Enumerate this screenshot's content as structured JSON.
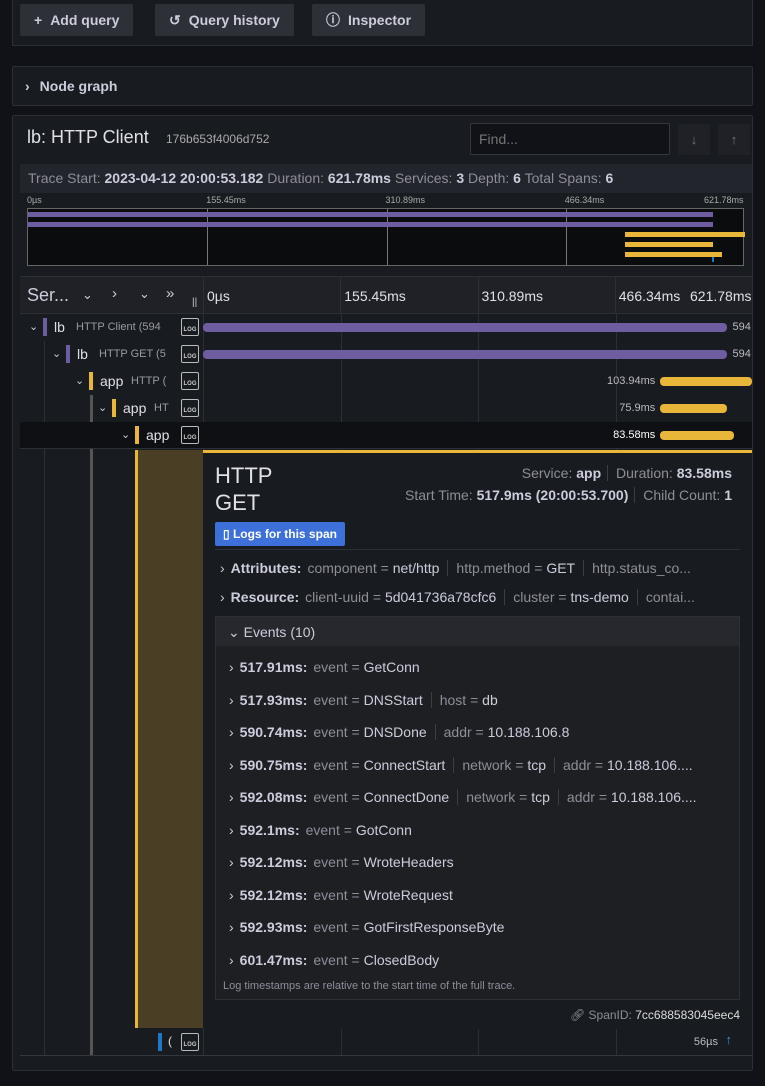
{
  "toolbar": {
    "add_query": "Add query",
    "query_history": "Query history",
    "inspector": "Inspector"
  },
  "node_graph": {
    "label": "Node graph"
  },
  "trace": {
    "title": "lb: HTTP Client",
    "trace_id": "176b653f4006d752",
    "find_placeholder": "Find...",
    "stats": {
      "trace_start_label": "Trace Start:",
      "trace_start": "2023-04-12 20:00:53.182",
      "duration_label": "Duration:",
      "duration": "621.78ms",
      "services_label": "Services:",
      "services": "3",
      "depth_label": "Depth:",
      "depth": "6",
      "total_spans_label": "Total Spans:",
      "total_spans": "6"
    },
    "ticks": [
      "0µs",
      "155.45ms",
      "310.89ms",
      "466.34ms",
      "621.78ms"
    ],
    "total_ms": 621.78,
    "header_service": "Ser...",
    "colors": {
      "lb": "#6e5da0",
      "app": "#e8b73a",
      "db": "#1f78c1"
    },
    "spans": [
      {
        "service": "lb",
        "operation": "HTTP Client (594",
        "depth": 0,
        "start_ms": 0,
        "duration_ms": 594,
        "label": "594",
        "color": "#6e5da0"
      },
      {
        "service": "lb",
        "operation": "HTTP GET (5",
        "depth": 1,
        "start_ms": 0,
        "duration_ms": 594,
        "label": "594",
        "color": "#6e5da0"
      },
      {
        "service": "app",
        "operation": "HTTP (",
        "depth": 2,
        "start_ms": 517.9,
        "duration_ms": 103.94,
        "label": "103.94ms",
        "color": "#e8b73a"
      },
      {
        "service": "app",
        "operation": "HT",
        "depth": 3,
        "start_ms": 517.9,
        "duration_ms": 75.9,
        "label": "75.9ms",
        "color": "#e8b73a"
      },
      {
        "service": "app",
        "operation": "",
        "depth": 4,
        "start_ms": 517.9,
        "duration_ms": 83.58,
        "label": "83.58ms",
        "color": "#e8b73a"
      }
    ],
    "last_span": {
      "service": "(",
      "label": "56µs",
      "color": "#1f78c1"
    }
  },
  "detail": {
    "title_line1": "HTTP",
    "title_line2": "GET",
    "service_label": "Service:",
    "service": "app",
    "duration_label": "Duration:",
    "duration": "83.58ms",
    "start_label": "Start Time:",
    "start": "517.9ms (20:00:53.700)",
    "child_label": "Child Count:",
    "child": "1",
    "logs_button": "Logs for this span",
    "attributes_label": "Attributes:",
    "attributes": [
      {
        "k": "component",
        "v": "net/http"
      },
      {
        "k": "http.method",
        "v": "GET"
      },
      {
        "k": "http.status_co...",
        "v": ""
      }
    ],
    "resource_label": "Resource:",
    "resource": [
      {
        "k": "client-uuid",
        "v": "5d041736a78cfc6"
      },
      {
        "k": "cluster",
        "v": "tns-demo"
      },
      {
        "k": "contai...",
        "v": ""
      }
    ],
    "events_label": "Events (10)",
    "events": [
      {
        "time": "517.91ms:",
        "kv": [
          {
            "k": "event",
            "v": "GetConn"
          }
        ]
      },
      {
        "time": "517.93ms:",
        "kv": [
          {
            "k": "event",
            "v": "DNSStart"
          },
          {
            "k": "host",
            "v": "db"
          }
        ]
      },
      {
        "time": "590.74ms:",
        "kv": [
          {
            "k": "event",
            "v": "DNSDone"
          },
          {
            "k": "addr",
            "v": "10.188.106.8"
          }
        ]
      },
      {
        "time": "590.75ms:",
        "kv": [
          {
            "k": "event",
            "v": "ConnectStart"
          },
          {
            "k": "network",
            "v": "tcp"
          },
          {
            "k": "addr",
            "v": "10.188.106...."
          }
        ]
      },
      {
        "time": "592.08ms:",
        "kv": [
          {
            "k": "event",
            "v": "ConnectDone"
          },
          {
            "k": "network",
            "v": "tcp"
          },
          {
            "k": "addr",
            "v": "10.188.106...."
          }
        ]
      },
      {
        "time": "592.1ms:",
        "kv": [
          {
            "k": "event",
            "v": "GotConn"
          }
        ]
      },
      {
        "time": "592.12ms:",
        "kv": [
          {
            "k": "event",
            "v": "WroteHeaders"
          }
        ]
      },
      {
        "time": "592.12ms:",
        "kv": [
          {
            "k": "event",
            "v": "WroteRequest"
          }
        ]
      },
      {
        "time": "592.93ms:",
        "kv": [
          {
            "k": "event",
            "v": "GotFirstResponseByte"
          }
        ]
      },
      {
        "time": "601.47ms:",
        "kv": [
          {
            "k": "event",
            "v": "ClosedBody"
          }
        ]
      }
    ],
    "events_note": "Log timestamps are relative to the start time of the full trace.",
    "span_id_label": "SpanID:",
    "span_id": "7cc688583045eec4"
  }
}
